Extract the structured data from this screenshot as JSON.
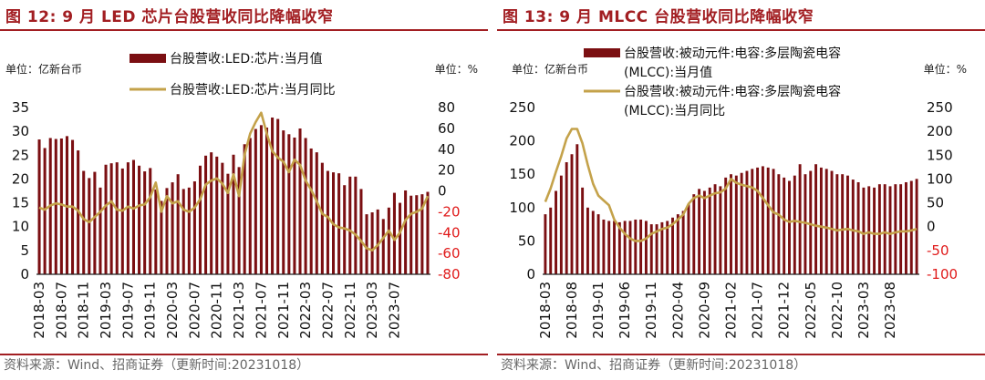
{
  "panels": [
    {
      "title": "图 12: 9 月 LED 芯片台股营收同比降幅收窄",
      "source": "资料来源：Wind、招商证券（更新时间:20231018）",
      "chart_data": {
        "type": "bar+line",
        "left_unit": "单位：亿新台币",
        "right_unit": "单位：%",
        "legend": {
          "bar": "台股营收:LED:芯片:当月值",
          "line": "台股营收:LED:芯片:当月同比"
        },
        "y_left": {
          "min": 0,
          "max": 35,
          "ticks": [
            "0",
            "5",
            "10",
            "15",
            "20",
            "25",
            "30",
            "35"
          ]
        },
        "y_right": {
          "min": -80,
          "max": 80,
          "ticks": [
            "-80",
            "-60",
            "-40",
            "-20",
            "0",
            "20",
            "40",
            "60",
            "80"
          ]
        },
        "x_tick_labels": [
          "2018-03",
          "2018-07",
          "2018-11",
          "2019-03",
          "2019-07",
          "2019-11",
          "2020-03",
          "2020-07",
          "2020-11",
          "2021-03",
          "2021-07",
          "2021-11",
          "2022-03",
          "2022-07",
          "2022-11",
          "2023-03",
          "2023-07"
        ],
        "bar_values": [
          28.3,
          26.5,
          28.6,
          28.4,
          28.5,
          29.0,
          28.2,
          26.0,
          21.7,
          20.2,
          21.5,
          18.2,
          23.0,
          23.3,
          23.5,
          22.2,
          23.5,
          24.0,
          22.8,
          21.6,
          22.3,
          17.8,
          15.4,
          18.1,
          19.3,
          21.0,
          17.9,
          18.2,
          19.5,
          22.8,
          24.9,
          25.6,
          24.7,
          23.4,
          21.1,
          25.1,
          22.5,
          27.3,
          28.6,
          30.5,
          31.3,
          30.8,
          32.9,
          32.6,
          30.2,
          29.4,
          28.7,
          30.6,
          28.6,
          26.4,
          25.6,
          23.4,
          21.7,
          21.4,
          21.2,
          18.7,
          20.5,
          20.5,
          17.9,
          12.6,
          13.0,
          13.6,
          11.6,
          14.0,
          17.1,
          15.0,
          17.6,
          16.5,
          16.6,
          16.8,
          17.3
        ],
        "line_values": [
          -16,
          -18,
          -14,
          -12,
          -13,
          -15,
          -15,
          -19,
          -27,
          -30,
          -25,
          -20,
          -14,
          -10,
          -18,
          -19,
          -15,
          -17,
          -14,
          -13,
          -6,
          8,
          -20,
          -5,
          -12,
          -10,
          -18,
          -20,
          -16,
          -8,
          6,
          10,
          12,
          7,
          -2,
          16,
          -5,
          35,
          55,
          66,
          75,
          55,
          38,
          32,
          28,
          18,
          30,
          25,
          10,
          1,
          -10,
          -22,
          -25,
          -32,
          -35,
          -36,
          -38,
          -42,
          -48,
          -55,
          -57,
          -52,
          -45,
          -38,
          -47,
          -40,
          -28,
          -22,
          -20,
          -17,
          -5
        ]
      }
    },
    {
      "title": "图 13: 9 月 MLCC 台股营收同比降幅收窄",
      "source": "资料来源：Wind、招商证券（更新时间:20231018）",
      "chart_data": {
        "type": "bar+line",
        "left_unit": "单位：亿新台币",
        "right_unit": "单位：%",
        "legend": {
          "bar": "台股营收:被动元件:电容:多层陶瓷电容 (MLCC):当月值",
          "line": "台股营收:被动元件:电容:多层陶瓷电容 (MLCC):当月同比"
        },
        "legend_lines": {
          "bar": [
            "台股营收:被动元件:电容:多层陶瓷电容",
            "(MLCC):当月值"
          ],
          "line": [
            "台股营收:被动元件:电容:多层陶瓷电容",
            "(MLCC):当月同比"
          ]
        },
        "y_left": {
          "min": 0,
          "max": 250,
          "ticks": [
            "0",
            "50",
            "100",
            "150",
            "200",
            "250"
          ]
        },
        "y_right": {
          "min": -100,
          "max": 250,
          "ticks": [
            "-100",
            "-50",
            "0",
            "50",
            "100",
            "150",
            "200",
            "250"
          ]
        },
        "x_tick_labels": [
          "2018-03",
          "2018-08",
          "2019-01",
          "2019-06",
          "2019-11",
          "2020-04",
          "2020-09",
          "2021-02",
          "2021-07",
          "2021-12",
          "2022-05",
          "2022-10",
          "2023-03",
          "2023-08"
        ],
        "bar_values": [
          90,
          100,
          125,
          148,
          168,
          180,
          195,
          130,
          100,
          95,
          90,
          82,
          80,
          80,
          78,
          80,
          80,
          82,
          82,
          80,
          75,
          75,
          78,
          80,
          85,
          90,
          95,
          105,
          120,
          128,
          125,
          130,
          135,
          132,
          145,
          150,
          148,
          152,
          155,
          158,
          160,
          162,
          160,
          158,
          150,
          145,
          140,
          148,
          165,
          150,
          155,
          165,
          160,
          158,
          155,
          150,
          150,
          148,
          142,
          138,
          130,
          132,
          130,
          135,
          135,
          132,
          135,
          135,
          138,
          140,
          143
        ],
        "line_values": [
          52,
          80,
          115,
          148,
          185,
          205,
          205,
          175,
          130,
          90,
          65,
          55,
          45,
          15,
          -2,
          -15,
          -25,
          -30,
          -30,
          -25,
          -15,
          -10,
          -5,
          -2,
          5,
          15,
          25,
          48,
          60,
          65,
          60,
          65,
          70,
          72,
          80,
          100,
          92,
          88,
          85,
          82,
          75,
          60,
          45,
          30,
          25,
          15,
          10,
          12,
          10,
          8,
          5,
          2,
          0,
          -2,
          -5,
          -8,
          -6,
          -5,
          -8,
          -10,
          -15,
          -12,
          -15,
          -15,
          -12,
          -15,
          -12,
          -10,
          -10,
          -8,
          -5
        ]
      }
    }
  ]
}
